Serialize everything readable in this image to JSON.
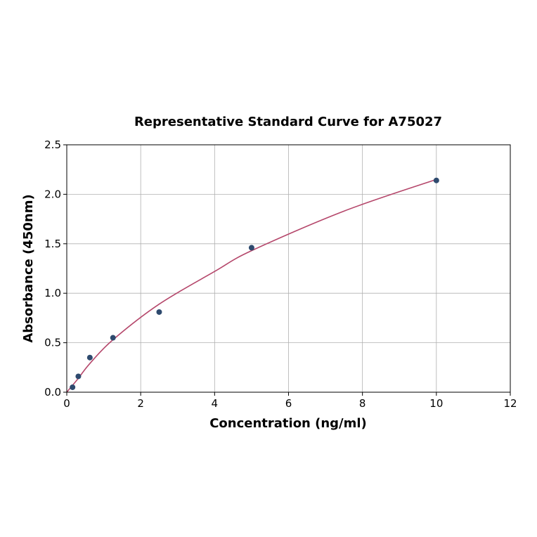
{
  "chart_data": {
    "type": "scatter",
    "title": "Representative Standard Curve for A75027",
    "xlabel": "Concentration (ng/ml)",
    "ylabel": "Absorbance (450nm)",
    "xlim": [
      0,
      12
    ],
    "ylim": [
      0,
      2.5
    ],
    "xticks": [
      "0",
      "2",
      "4",
      "6",
      "8",
      "10",
      "12"
    ],
    "yticks": [
      "0.0",
      "0.5",
      "1.0",
      "1.5",
      "2.0",
      "2.5"
    ],
    "grid": true,
    "points": {
      "x": [
        0.156,
        0.3125,
        0.625,
        1.25,
        2.5,
        5,
        10
      ],
      "y": [
        0.05,
        0.16,
        0.35,
        0.55,
        0.81,
        1.46,
        2.14
      ],
      "color": "#2e4a6e"
    },
    "fit_curve": {
      "x": [
        0,
        0.156,
        0.3125,
        0.625,
        1.25,
        2.5,
        4,
        5,
        7.5,
        10
      ],
      "y": [
        0.0,
        0.07,
        0.14,
        0.29,
        0.53,
        0.89,
        1.22,
        1.43,
        1.83,
        2.15
      ],
      "color": "#b5476b"
    }
  }
}
